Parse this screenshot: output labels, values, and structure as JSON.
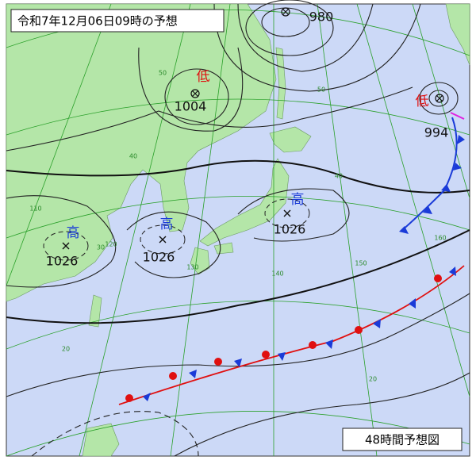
{
  "header": {
    "title": "令和7年12月06日09時の予想"
  },
  "footer": {
    "label": "48時間予想図"
  },
  "pressure_systems": [
    {
      "pressure": "980"
    },
    {
      "kind": "低",
      "pressure": "1004"
    },
    {
      "kind": "低",
      "pressure": "994"
    },
    {
      "kind": "高",
      "pressure": "1026"
    },
    {
      "kind": "高",
      "pressure": "1026"
    },
    {
      "kind": "高",
      "pressure": "1026"
    }
  ],
  "grid_labels": [
    "50",
    "40",
    "30",
    "20",
    "110",
    "120",
    "130",
    "140",
    "150",
    "160",
    "50",
    "40",
    "20"
  ]
}
